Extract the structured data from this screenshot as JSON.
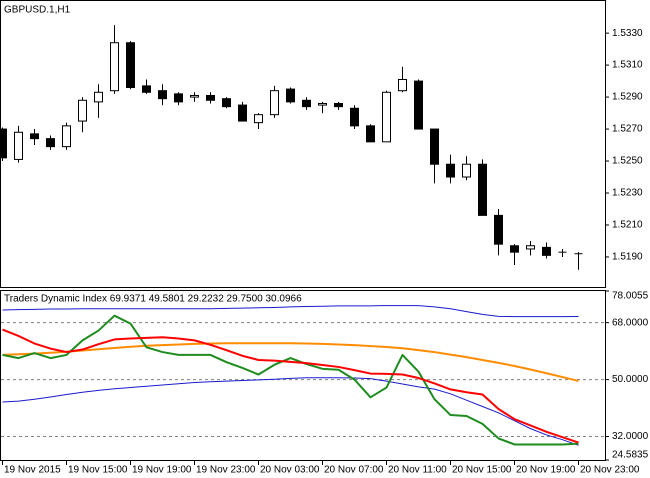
{
  "chart_data": [
    {
      "type": "candlestick",
      "title": "GBPUSD.1,H1",
      "categories": [
        "19 Nov 2015",
        null,
        null,
        null,
        "19 Nov 15:00",
        null,
        null,
        null,
        "19 Nov 19:00",
        null,
        null,
        null,
        "19 Nov 23:00",
        null,
        null,
        null,
        "20 Nov 03:00",
        null,
        null,
        null,
        "20 Nov 07:00",
        null,
        null,
        null,
        "20 Nov 11:00",
        null,
        null,
        null,
        "20 Nov 15:00",
        null,
        null,
        null,
        "20 Nov 19:00",
        null,
        null,
        null,
        "20 Nov 23:00"
      ],
      "open": [
        1.527,
        1.5251,
        1.5267,
        1.5264,
        1.5259,
        1.5275,
        1.5287,
        1.5294,
        1.5324,
        1.5297,
        1.5294,
        1.5292,
        1.529,
        1.5291,
        1.5289,
        1.5285,
        1.5274,
        1.5279,
        1.5295,
        1.5288,
        1.5285,
        1.5286,
        1.5283,
        1.5272,
        1.5262,
        1.5294,
        1.53,
        1.527,
        1.5248,
        1.524,
        1.5248,
        1.5216,
        1.5197,
        1.5195,
        1.5196,
        1.5193,
        1.5192
      ],
      "high": [
        1.5271,
        1.5272,
        1.527,
        1.5266,
        1.5274,
        1.529,
        1.5298,
        1.5335,
        1.5325,
        1.5301,
        1.5298,
        1.5293,
        1.5293,
        1.5293,
        1.529,
        1.5287,
        1.528,
        1.5297,
        1.5296,
        1.529,
        1.5287,
        1.5287,
        1.5285,
        1.5273,
        1.5294,
        1.5309,
        1.5301,
        1.527,
        1.5254,
        1.5253,
        1.5251,
        1.522,
        1.5198,
        1.52,
        1.5199,
        1.5195,
        1.5193
      ],
      "low": [
        1.525,
        1.5249,
        1.526,
        1.5257,
        1.5257,
        1.5268,
        1.5277,
        1.5292,
        1.5295,
        1.5292,
        1.5285,
        1.5285,
        1.5287,
        1.5286,
        1.5283,
        1.5275,
        1.527,
        1.5277,
        1.5286,
        1.5282,
        1.528,
        1.5282,
        1.527,
        1.5262,
        1.5262,
        1.5293,
        1.527,
        1.5236,
        1.5236,
        1.5238,
        1.5216,
        1.5191,
        1.5185,
        1.5191,
        1.5189,
        1.519,
        1.5182
      ],
      "close": [
        1.5252,
        1.5268,
        1.5264,
        1.5259,
        1.5272,
        1.5288,
        1.5293,
        1.5324,
        1.5296,
        1.5293,
        1.5289,
        1.5287,
        1.5291,
        1.5288,
        1.5284,
        1.5275,
        1.5279,
        1.5294,
        1.5287,
        1.5284,
        1.5286,
        1.5284,
        1.5272,
        1.5262,
        1.5293,
        1.5301,
        1.527,
        1.5248,
        1.524,
        1.5248,
        1.5216,
        1.5198,
        1.5193,
        1.5197,
        1.5191,
        1.5193,
        1.5192
      ],
      "ylim": [
        1.51712,
        1.53501
      ],
      "yticks": [
        {
          "value": 1.533,
          "label": "1.5330"
        },
        {
          "value": 1.531,
          "label": "1.5310"
        },
        {
          "value": 1.529,
          "label": "1.5290"
        },
        {
          "value": 1.527,
          "label": "1.5270"
        },
        {
          "value": 1.525,
          "label": "1.5250"
        },
        {
          "value": 1.523,
          "label": "1.5230"
        },
        {
          "value": 1.521,
          "label": "1.5210"
        },
        {
          "value": 1.519,
          "label": "1.5190"
        }
      ],
      "bull_color": "#ffffff",
      "bear_color": "#000000"
    },
    {
      "type": "line",
      "title": "Traders Dynamic Index 69.9371 49.5801 29.2232 29.7500 30.0966",
      "ylim": [
        24.5835,
        78.0055
      ],
      "yticks": [
        78.0055,
        {
          "value": 68,
          "label": "68.0000"
        },
        {
          "value": 50,
          "label": "50.0000"
        },
        {
          "value": 32,
          "label": "32.0000"
        },
        24.5835
      ],
      "levels": [
        68,
        50,
        32
      ],
      "series": [
        {
          "color": "#1a1acd",
          "width": 1,
          "values": [
            72.0,
            72.1,
            72.2,
            72.3,
            72.3,
            72.4,
            72.4,
            72.4,
            72.4,
            72.4,
            72.4,
            72.4,
            72.4,
            72.4,
            72.5,
            72.6,
            72.7,
            72.8,
            73.0,
            73.1,
            73.2,
            73.3,
            73.3,
            73.3,
            73.4,
            73.4,
            73.4,
            73.0,
            72.4,
            71.5,
            70.6,
            70.0,
            69.9,
            69.9,
            69.9,
            69.9,
            69.9371
          ]
        },
        {
          "color": "#ff8c00",
          "width": 2,
          "values": [
            57.8,
            58.0,
            58.2,
            58.5,
            58.8,
            59.2,
            59.6,
            60.0,
            60.4,
            60.7,
            60.9,
            61.1,
            61.3,
            61.4,
            61.5,
            61.5,
            61.5,
            61.5,
            61.5,
            61.4,
            61.3,
            61.1,
            60.9,
            60.6,
            60.3,
            59.9,
            59.3,
            58.7,
            57.9,
            57.1,
            56.2,
            55.3,
            54.3,
            53.2,
            52.0,
            50.8,
            49.5801
          ]
        },
        {
          "color": "#1a1acd",
          "width": 1,
          "values": [
            42.9,
            43.2,
            43.8,
            44.5,
            45.3,
            46.0,
            46.6,
            47.1,
            47.5,
            47.9,
            48.3,
            48.7,
            49.1,
            49.3,
            49.5,
            49.7,
            49.9,
            50.1,
            50.4,
            50.6,
            50.6,
            50.6,
            50.5,
            50.3,
            49.5,
            48.6,
            47.7,
            47.0,
            45.5,
            43.5,
            41.5,
            39.5,
            37.0,
            34.5,
            32.5,
            31.0,
            29.2232
          ]
        },
        {
          "color": "#1e8c1e",
          "width": 2,
          "values": [
            57.8,
            56.8,
            58.4,
            56.8,
            57.8,
            62.4,
            65.5,
            70.2,
            67.7,
            60.2,
            58.7,
            57.8,
            57.8,
            57.8,
            55.5,
            53.7,
            51.6,
            54.7,
            56.8,
            54.9,
            53.4,
            53.1,
            50.0,
            44.4,
            47.5,
            57.8,
            52.5,
            43.8,
            38.8,
            38.5,
            36.0,
            31.4,
            29.5,
            29.5,
            29.5,
            29.5,
            29.75
          ]
        },
        {
          "color": "#ff0000",
          "width": 2,
          "values": [
            65.8,
            63.8,
            61.4,
            59.8,
            58.7,
            59.5,
            61.2,
            62.7,
            63.0,
            63.2,
            63.4,
            63.0,
            62.4,
            61.0,
            59.3,
            57.5,
            56.2,
            56.0,
            55.6,
            55.2,
            54.6,
            54.0,
            53.0,
            51.9,
            51.8,
            51.6,
            50.5,
            48.8,
            46.9,
            46.0,
            45.3,
            40.7,
            37.5,
            35.5,
            33.5,
            31.8,
            30.0966
          ]
        }
      ]
    }
  ]
}
